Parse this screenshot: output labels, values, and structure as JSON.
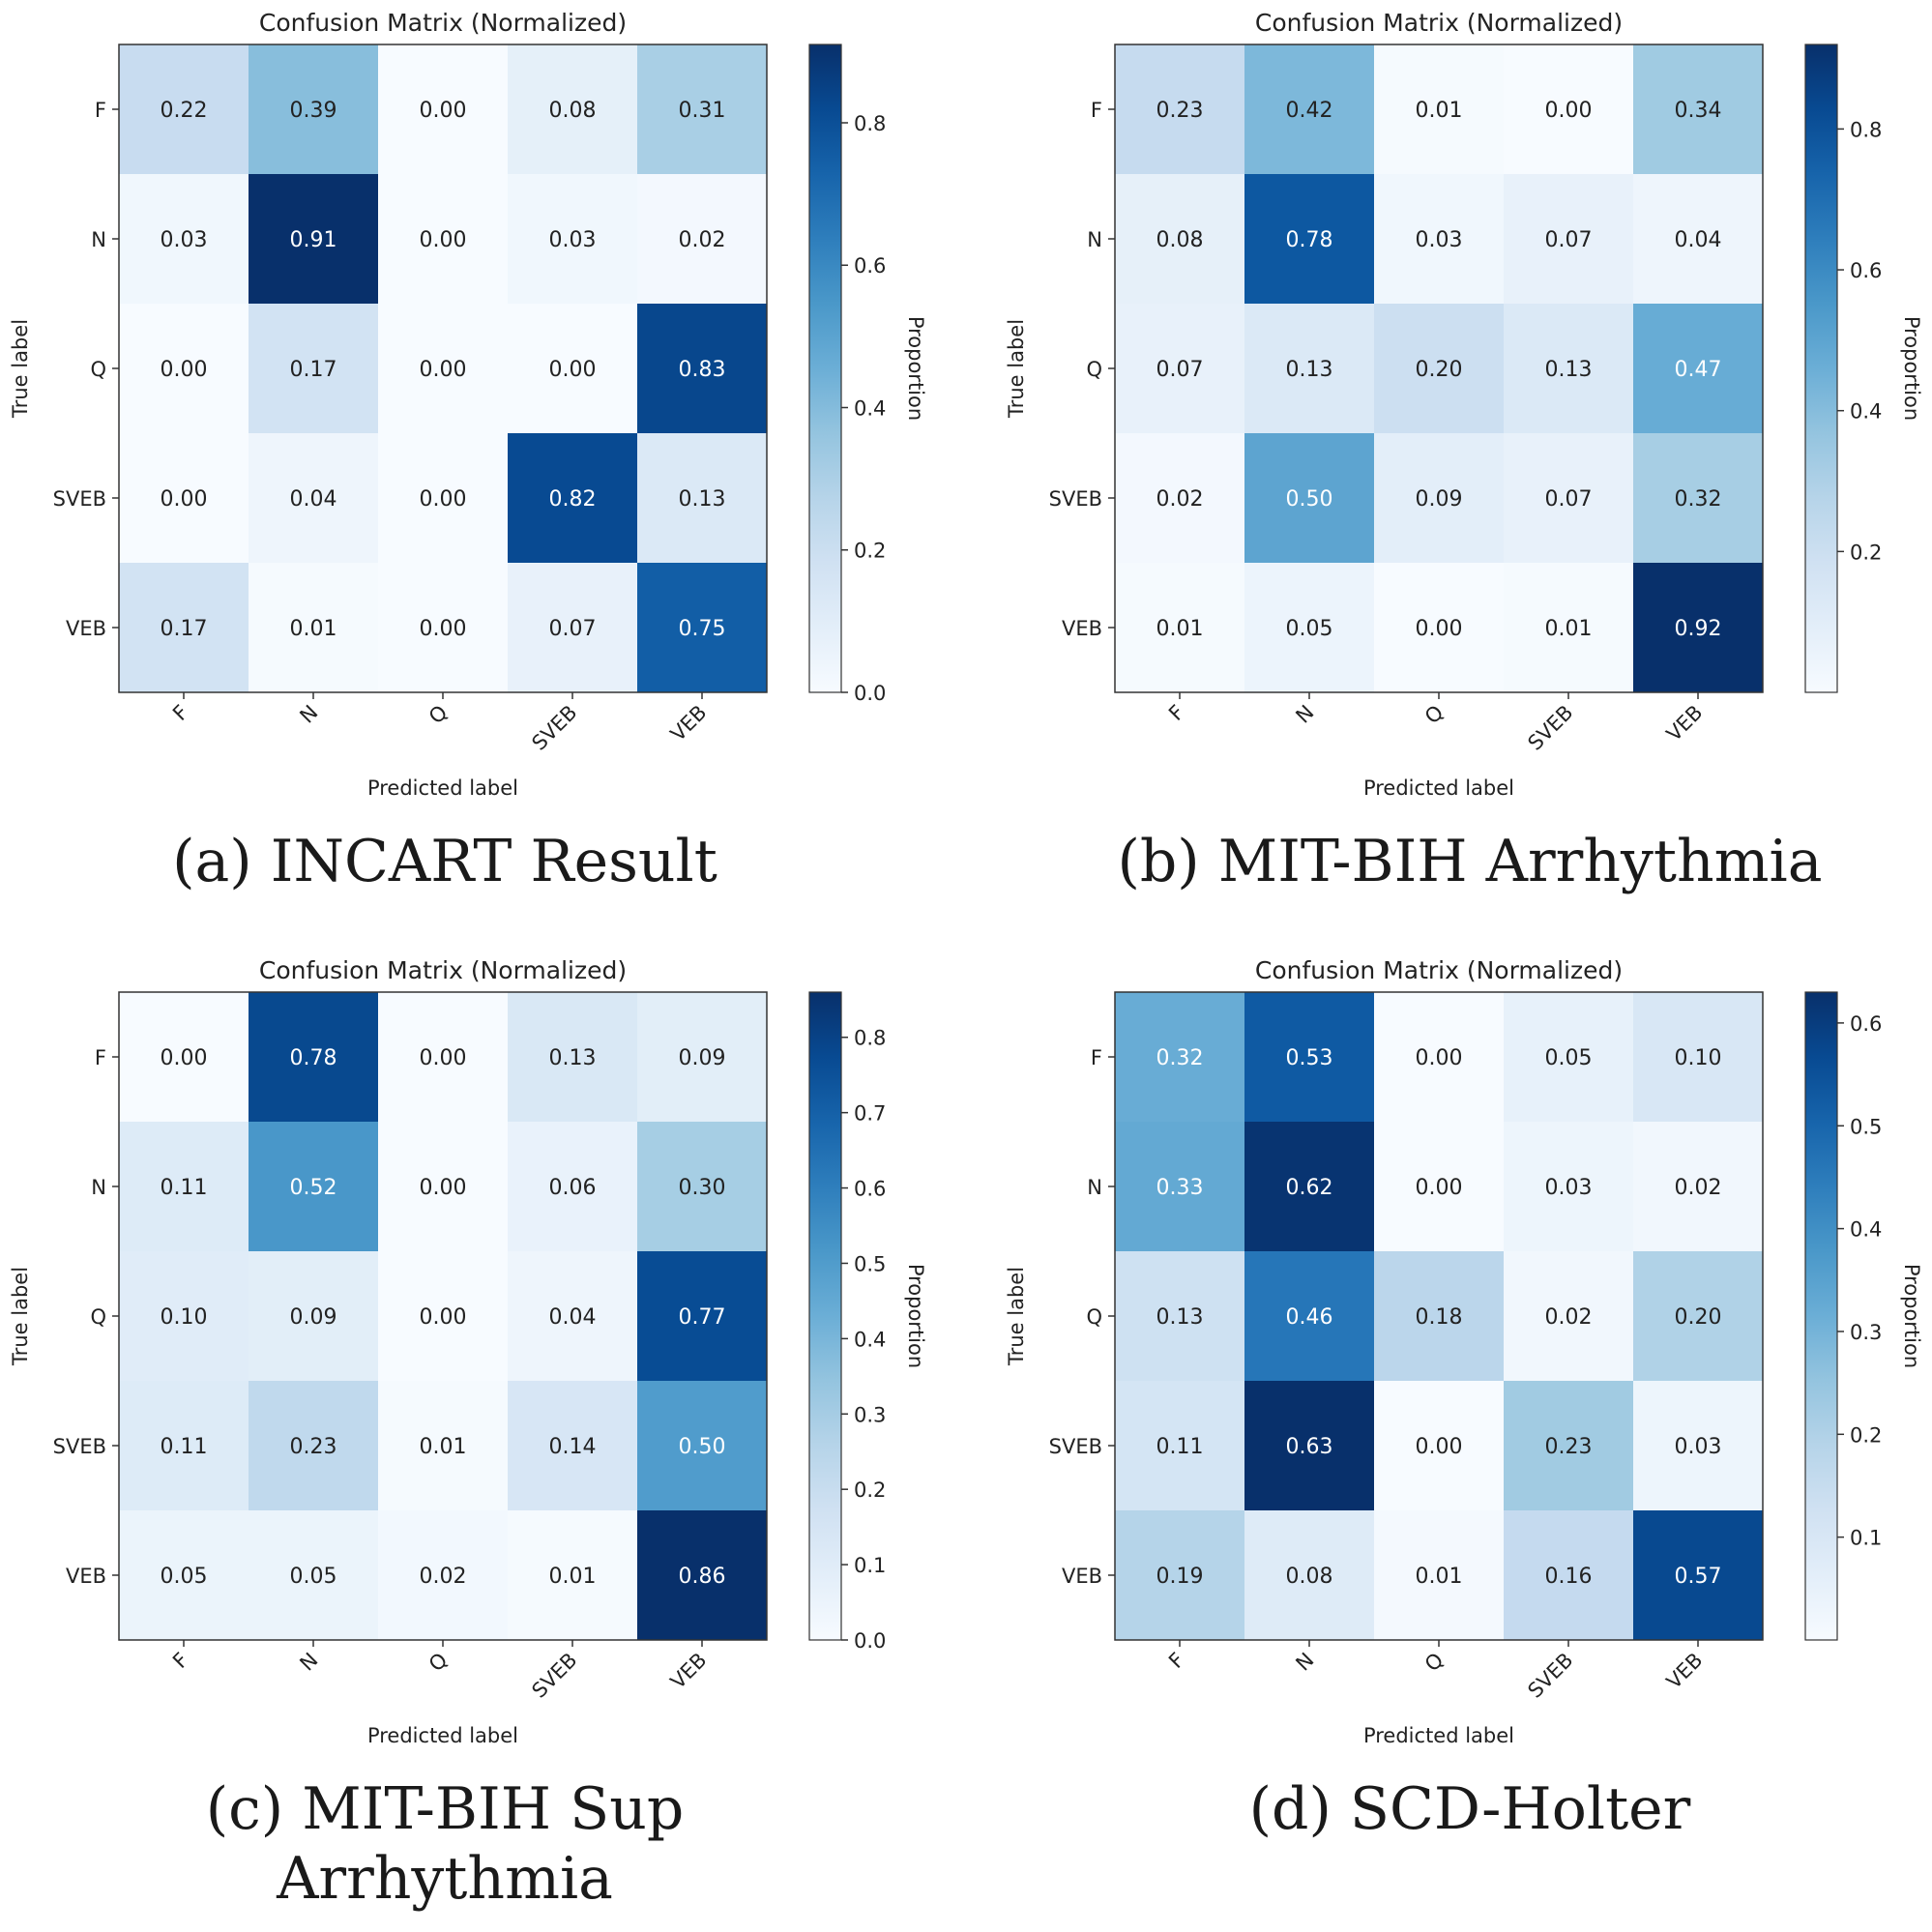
{
  "chart_data": [
    {
      "type": "heatmap",
      "title": "Confusion Matrix (Normalized)",
      "xlabel": "Predicted label",
      "ylabel": "True label",
      "colorbar_label": "Proportion",
      "colormap": "Blues",
      "x_categories": [
        "F",
        "N",
        "Q",
        "SVEB",
        "VEB"
      ],
      "y_categories": [
        "F",
        "N",
        "Q",
        "SVEB",
        "VEB"
      ],
      "values": [
        [
          0.22,
          0.39,
          0.0,
          0.08,
          0.31
        ],
        [
          0.03,
          0.91,
          0.0,
          0.03,
          0.02
        ],
        [
          0.0,
          0.17,
          0.0,
          0.0,
          0.83
        ],
        [
          0.0,
          0.04,
          0.0,
          0.82,
          0.13
        ],
        [
          0.17,
          0.01,
          0.0,
          0.07,
          0.75
        ]
      ],
      "colorbar_range": [
        0.0,
        0.91
      ],
      "colorbar_ticks": [
        "0.0",
        "0.2",
        "0.4",
        "0.6",
        "0.8"
      ],
      "caption": "(a) INCART Result"
    },
    {
      "type": "heatmap",
      "title": "Confusion Matrix (Normalized)",
      "xlabel": "Predicted label",
      "ylabel": "True label",
      "colorbar_label": "Proportion",
      "colormap": "Blues",
      "x_categories": [
        "F",
        "N",
        "Q",
        "SVEB",
        "VEB"
      ],
      "y_categories": [
        "F",
        "N",
        "Q",
        "SVEB",
        "VEB"
      ],
      "values": [
        [
          0.23,
          0.42,
          0.01,
          0.0,
          0.34
        ],
        [
          0.08,
          0.78,
          0.03,
          0.07,
          0.04
        ],
        [
          0.07,
          0.13,
          0.2,
          0.13,
          0.47
        ],
        [
          0.02,
          0.5,
          0.09,
          0.07,
          0.32
        ],
        [
          0.01,
          0.05,
          0.0,
          0.01,
          0.92
        ]
      ],
      "colorbar_range": [
        0.0,
        0.92
      ],
      "colorbar_ticks": [
        "0.2",
        "0.4",
        "0.6",
        "0.8"
      ],
      "caption": "(b) MIT-BIH Arrhythmia"
    },
    {
      "type": "heatmap",
      "title": "Confusion Matrix (Normalized)",
      "xlabel": "Predicted label",
      "ylabel": "True label",
      "colorbar_label": "Proportion",
      "colormap": "Blues",
      "x_categories": [
        "F",
        "N",
        "Q",
        "SVEB",
        "VEB"
      ],
      "y_categories": [
        "F",
        "N",
        "Q",
        "SVEB",
        "VEB"
      ],
      "values": [
        [
          0.0,
          0.78,
          0.0,
          0.13,
          0.09
        ],
        [
          0.11,
          0.52,
          0.0,
          0.06,
          0.3
        ],
        [
          0.1,
          0.09,
          0.0,
          0.04,
          0.77
        ],
        [
          0.11,
          0.23,
          0.01,
          0.14,
          0.5
        ],
        [
          0.05,
          0.05,
          0.02,
          0.01,
          0.86
        ]
      ],
      "colorbar_range": [
        0.0,
        0.86
      ],
      "colorbar_ticks": [
        "0.0",
        "0.1",
        "0.2",
        "0.3",
        "0.4",
        "0.5",
        "0.6",
        "0.7",
        "0.8"
      ],
      "caption": "(c) MIT-BIH Sup Arrhythmia"
    },
    {
      "type": "heatmap",
      "title": "Confusion Matrix (Normalized)",
      "xlabel": "Predicted label",
      "ylabel": "True label",
      "colorbar_label": "Proportion",
      "colormap": "Blues",
      "x_categories": [
        "F",
        "N",
        "Q",
        "SVEB",
        "VEB"
      ],
      "y_categories": [
        "F",
        "N",
        "Q",
        "SVEB",
        "VEB"
      ],
      "values": [
        [
          0.32,
          0.53,
          0.0,
          0.05,
          0.1
        ],
        [
          0.33,
          0.62,
          0.0,
          0.03,
          0.02
        ],
        [
          0.13,
          0.46,
          0.18,
          0.02,
          0.2
        ],
        [
          0.11,
          0.63,
          0.0,
          0.23,
          0.03
        ],
        [
          0.19,
          0.08,
          0.01,
          0.16,
          0.57
        ]
      ],
      "colorbar_range": [
        0.0,
        0.63
      ],
      "colorbar_ticks": [
        "0.1",
        "0.2",
        "0.3",
        "0.4",
        "0.5",
        "0.6"
      ],
      "caption": "(d) SCD-Holter"
    }
  ]
}
